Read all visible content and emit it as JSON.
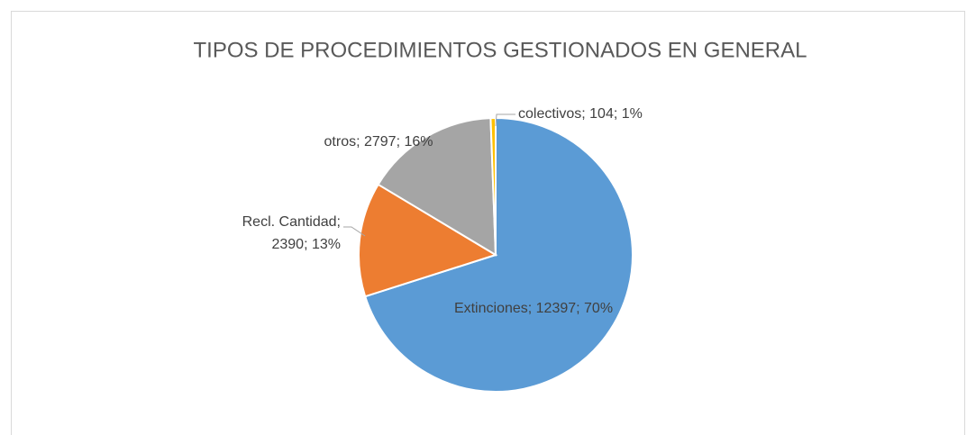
{
  "chart_data": {
    "type": "pie",
    "title": "TIPOS DE PROCEDIMIENTOS GESTIONADOS EN GENERAL",
    "values": [
      12397,
      2390,
      2797,
      104
    ],
    "value_labels": [
      "Extinciones; 12397; 70%",
      "Recl. Cantidad; 2390; 13%",
      "otros; 2797; 16%",
      "colectivos; 104; 1%"
    ],
    "colors": [
      "#5b9bd5",
      "#ed7d31",
      "#a5a5a5",
      "#ffc000"
    ]
  }
}
